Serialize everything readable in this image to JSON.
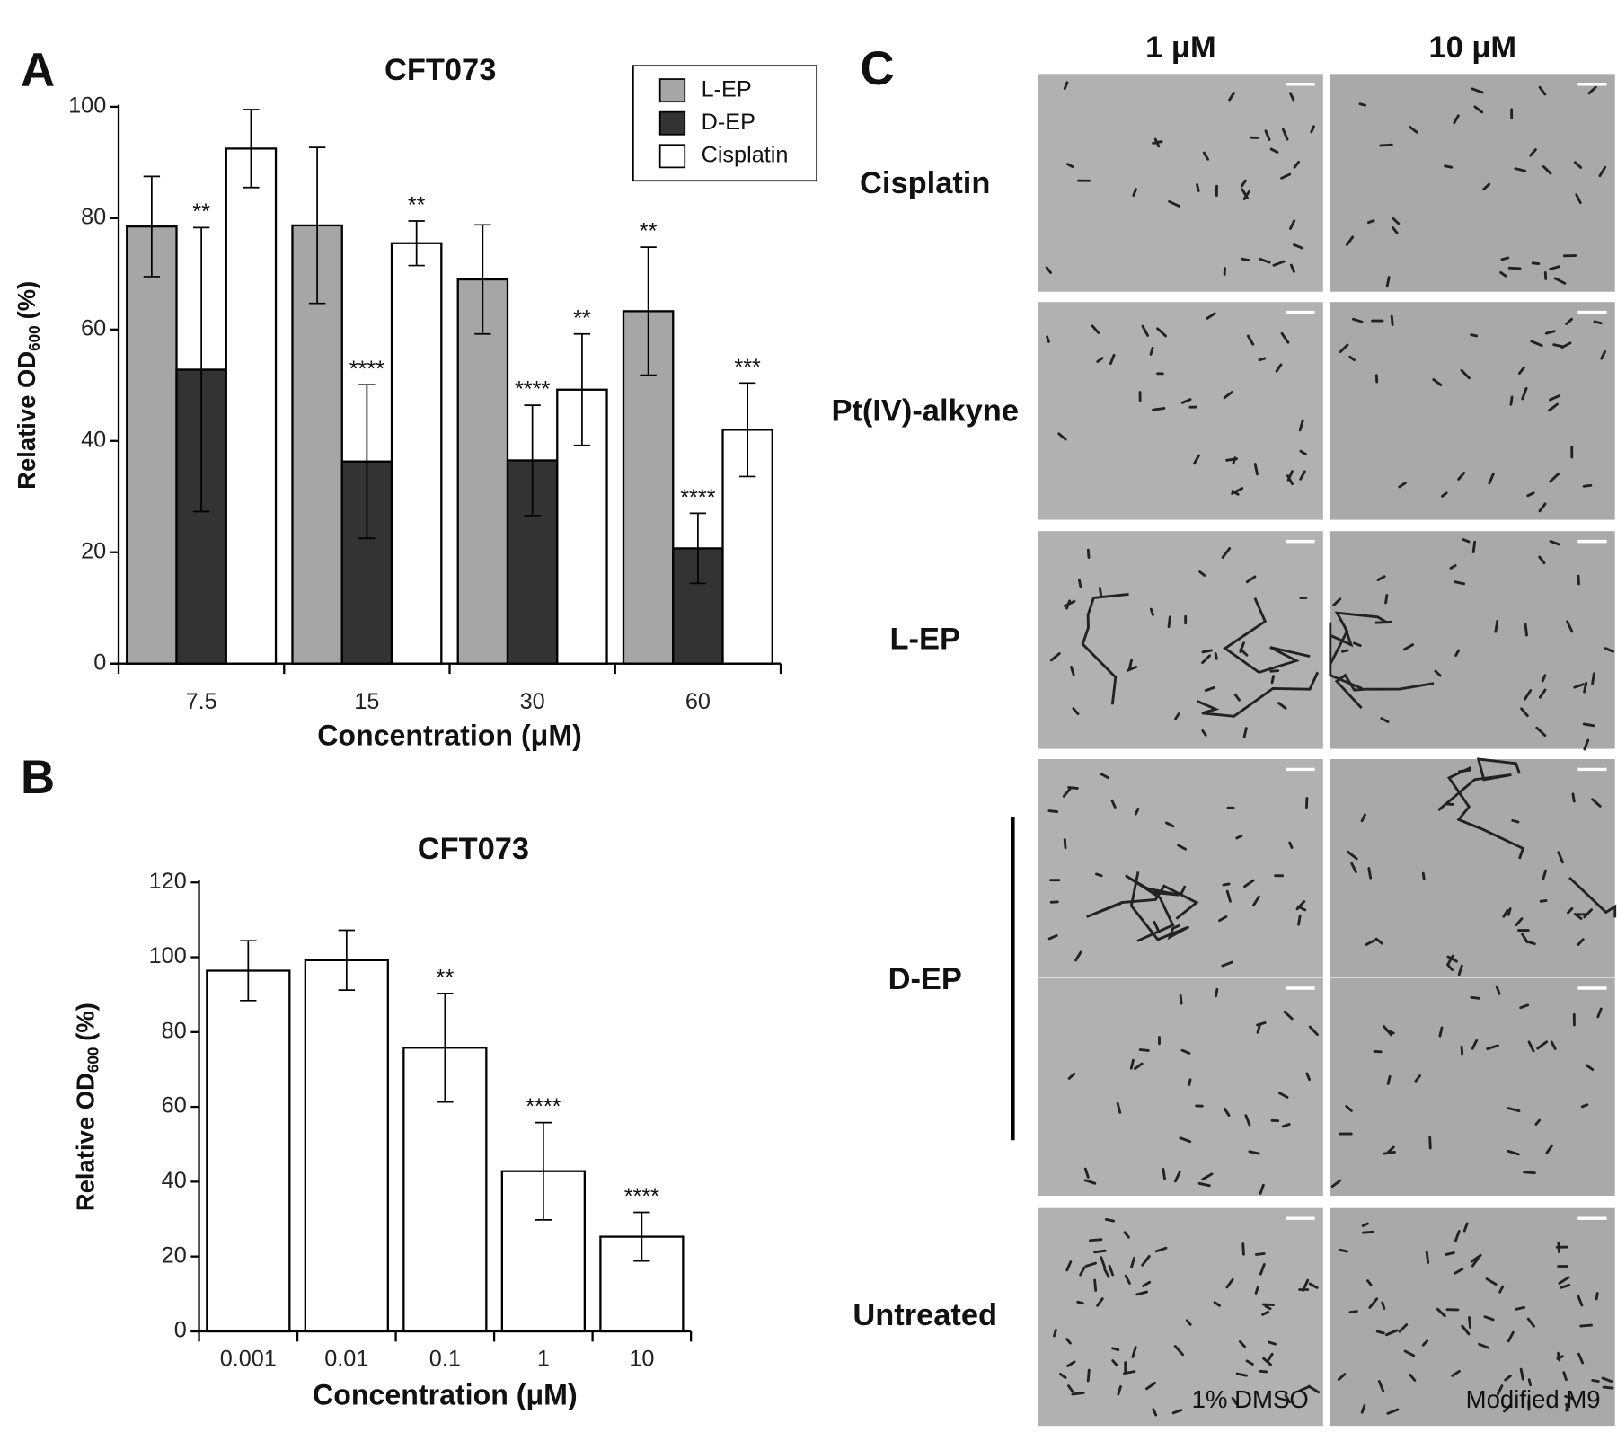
{
  "chart_data": [
    {
      "type": "bar",
      "panel": "A",
      "title": "CFT073",
      "categories": [
        "7.5",
        "15",
        "30",
        "60"
      ],
      "xlabel": "Concentration (μM)",
      "ylabel": "Relative OD",
      "ylabel_sub": "600",
      "ylabel_unit": "(%)",
      "ylim": [
        0,
        100
      ],
      "yticks": [
        0,
        20,
        40,
        60,
        80,
        100
      ],
      "legend": "top-right",
      "series": [
        {
          "name": "L-EP",
          "color": "#a6a6a6",
          "values": [
            78.5,
            78.7,
            69,
            63.3
          ],
          "errors": [
            9,
            14,
            9.8,
            11.5
          ],
          "significance": [
            null,
            null,
            null,
            "**"
          ]
        },
        {
          "name": "D-EP",
          "color": "#333333",
          "values": [
            52.8,
            36.3,
            36.5,
            20.7
          ],
          "errors": [
            25.5,
            13.8,
            9.9,
            6.3
          ],
          "significance": [
            "**",
            "****",
            "****",
            "****"
          ]
        },
        {
          "name": "Cisplatin",
          "color": "#ffffff",
          "values": [
            92.5,
            75.5,
            49.2,
            42
          ],
          "errors": [
            7,
            4,
            10,
            8.4
          ],
          "significance": [
            null,
            "**",
            "**",
            "***"
          ]
        }
      ]
    },
    {
      "type": "bar",
      "panel": "B",
      "title": "CFT073",
      "categories": [
        "0.001",
        "0.01",
        "0.1",
        "1",
        "10"
      ],
      "xlabel": "Concentration (μM)",
      "ylabel": "Relative OD",
      "ylabel_sub": "600",
      "ylabel_unit": "(%)",
      "ylim": [
        0,
        120
      ],
      "yticks": [
        0,
        20,
        40,
        60,
        80,
        100,
        120
      ],
      "color": "#ffffff",
      "values": [
        96.4,
        99.2,
        75.8,
        42.8,
        25.3
      ],
      "errors": [
        8,
        8,
        14.5,
        13,
        6.5
      ],
      "significance": [
        null,
        null,
        "**",
        "****",
        "****"
      ]
    }
  ],
  "panel_c": {
    "panel": "C",
    "columns": [
      "1 μM",
      "10 μM"
    ],
    "rows": [
      "Cisplatin",
      "Pt(IV)-alkyne",
      "L-EP",
      "D-EP",
      "Untreated"
    ],
    "captions": [
      "1% DMSO",
      "Modified M9"
    ]
  }
}
